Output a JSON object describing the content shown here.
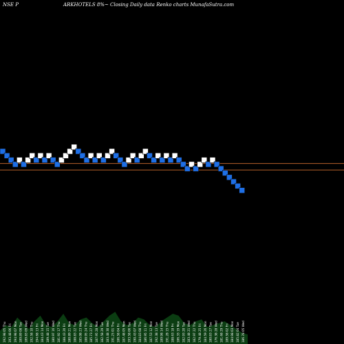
{
  "header": {
    "exchange_prefix": "NSE P",
    "title": "ARKHOTELS 8%~ Closing Daily data Renko charts MunafaSutra.com"
  },
  "colors": {
    "background": "#000000",
    "up_brick": "#ffffff",
    "down_brick": "#1e6fe6",
    "brick_border": "#0a0a0a",
    "reference_line": "#b8602a",
    "volume_fill": "#0b3d12",
    "label_color": "#ffffff"
  },
  "chart_data": {
    "type": "renko",
    "title": "ARKHOTELS 8%~ Closing Daily data Renko charts MunafaSutra.com",
    "xlabel": "",
    "ylabel": "",
    "grid": false,
    "bricks": [
      {
        "level": 0,
        "dir": "down"
      },
      {
        "level": -1,
        "dir": "down"
      },
      {
        "level": -2,
        "dir": "down"
      },
      {
        "level": -3,
        "dir": "down"
      },
      {
        "level": -2,
        "dir": "up"
      },
      {
        "level": -3,
        "dir": "down"
      },
      {
        "level": -2,
        "dir": "up"
      },
      {
        "level": -1,
        "dir": "up"
      },
      {
        "level": -2,
        "dir": "down"
      },
      {
        "level": -1,
        "dir": "up"
      },
      {
        "level": -2,
        "dir": "down"
      },
      {
        "level": -1,
        "dir": "up"
      },
      {
        "level": -2,
        "dir": "down"
      },
      {
        "level": -3,
        "dir": "down"
      },
      {
        "level": -2,
        "dir": "up"
      },
      {
        "level": -1,
        "dir": "up"
      },
      {
        "level": 0,
        "dir": "up"
      },
      {
        "level": 1,
        "dir": "up"
      },
      {
        "level": 0,
        "dir": "down"
      },
      {
        "level": -1,
        "dir": "down"
      },
      {
        "level": -2,
        "dir": "down"
      },
      {
        "level": -1,
        "dir": "up"
      },
      {
        "level": -2,
        "dir": "down"
      },
      {
        "level": -1,
        "dir": "up"
      },
      {
        "level": -2,
        "dir": "down"
      },
      {
        "level": -1,
        "dir": "up"
      },
      {
        "level": 0,
        "dir": "up"
      },
      {
        "level": -1,
        "dir": "down"
      },
      {
        "level": -2,
        "dir": "down"
      },
      {
        "level": -3,
        "dir": "down"
      },
      {
        "level": -2,
        "dir": "up"
      },
      {
        "level": -1,
        "dir": "up"
      },
      {
        "level": -2,
        "dir": "down"
      },
      {
        "level": -1,
        "dir": "up"
      },
      {
        "level": 0,
        "dir": "up"
      },
      {
        "level": -1,
        "dir": "down"
      },
      {
        "level": -2,
        "dir": "down"
      },
      {
        "level": -1,
        "dir": "up"
      },
      {
        "level": -2,
        "dir": "down"
      },
      {
        "level": -1,
        "dir": "up"
      },
      {
        "level": -2,
        "dir": "down"
      },
      {
        "level": -1,
        "dir": "up"
      },
      {
        "level": -2,
        "dir": "down"
      },
      {
        "level": -3,
        "dir": "down"
      },
      {
        "level": -4,
        "dir": "down"
      },
      {
        "level": -3,
        "dir": "up"
      },
      {
        "level": -4,
        "dir": "down"
      },
      {
        "level": -3,
        "dir": "up"
      },
      {
        "level": -2,
        "dir": "up"
      },
      {
        "level": -3,
        "dir": "down"
      },
      {
        "level": -2,
        "dir": "up"
      },
      {
        "level": -3,
        "dir": "down"
      },
      {
        "level": -4,
        "dir": "down"
      },
      {
        "level": -5,
        "dir": "down"
      },
      {
        "level": -6,
        "dir": "down"
      },
      {
        "level": -7,
        "dir": "down"
      },
      {
        "level": -8,
        "dir": "down"
      },
      {
        "level": -9,
        "dir": "down"
      }
    ],
    "reference_levels": [
      -2.8,
      -4.3
    ],
    "volume_levels": [
      0.35,
      0.5,
      0.45,
      0.7,
      0.55,
      0.4,
      0.6,
      0.75,
      0.5,
      0.45,
      0.6,
      0.8,
      0.55,
      0.5,
      0.65,
      0.7,
      0.55,
      0.45,
      0.6,
      0.75,
      0.85,
      0.6,
      0.5,
      0.55,
      0.7,
      0.65,
      0.5,
      0.45,
      0.6,
      0.7,
      0.8,
      0.75,
      0.55,
      0.5,
      0.6,
      0.65,
      0.45,
      0.5,
      0.55,
      0.6,
      0.5,
      0.4,
      0.3,
      0.25
    ],
    "bottom_labels": [
      "192.98 05 Thu",
      "193.48 06 Fri",
      "194.98 07 Mon",
      "189.89 08 Tue",
      "189.83 09 Wed",
      "192.58 10 Thu",
      "194.68 13 Fri",
      "184.43 14 Mon",
      "189.48 15 Tue",
      "180.97 16 Wed",
      "181.92 17 Thu",
      "188.43 20 Fri",
      "180.89 21 Mon",
      "188.83 22 Tue",
      "185.08 23 Wed",
      "188.95 24 Thu",
      "185.73 27 Fri",
      "187.95 28 Mon",
      "182.58 29 Tue",
      "183.48 30 Wed",
      "191.25 01 Thu",
      "186.58 04 Fri",
      "187.48 05 Mon",
      "193.58 06 Tue",
      "190.43 07 Wed",
      "184.83 08 Thu",
      "186.95 11 Fri",
      "187.53 12 Mon",
      "192.38 13 Tue",
      "189.98 14 Wed",
      "191.28 15 Thu",
      "188.63 18 Fri",
      "186.33 19 Mon",
      "182.93 20 Tue",
      "183.48 21 Wed",
      "182.97 22 Thu",
      "179.48 25 Fri",
      "184.59 26 Mon",
      "180.83 27 Tue",
      "176.38 28 Wed",
      "181.68 29 Thu",
      "189.58 02 Fri",
      "184.98 03 Mon",
      "185.82 04 Tue",
      "186.78 05 Wed"
    ]
  }
}
